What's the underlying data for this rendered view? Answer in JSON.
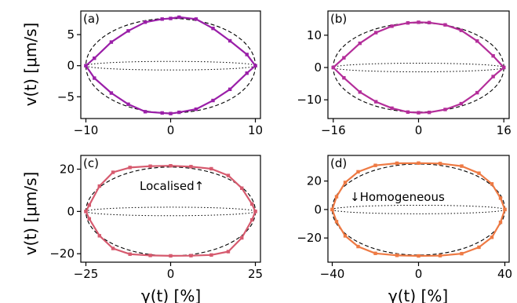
{
  "figure": {
    "ylabel": "v(t) [μm/s]",
    "xlabel": "γ(t) [%]"
  },
  "chart_data": [
    {
      "panel": "(a)",
      "type": "line",
      "title": "",
      "xlabel": "",
      "ylabel": "v(t) [μm/s]",
      "xlim": [
        -10.6,
        10.6
      ],
      "ylim": [
        -8.5,
        8.8
      ],
      "xticks": [
        -10,
        0,
        10
      ],
      "yticks": [
        -5,
        0,
        5
      ],
      "amplitude_strain": 10,
      "max_velocity": 7.6,
      "color": "#9a1fa8",
      "series": [
        {
          "x": [
            -10,
            -9,
            -7,
            -5,
            -3,
            -1,
            0,
            1,
            3,
            5,
            7,
            9,
            10
          ],
          "y": [
            0,
            1.2,
            3.8,
            5.6,
            7.0,
            7.5,
            7.6,
            7.8,
            7.5,
            6.0,
            4.0,
            1.8,
            0
          ]
        },
        {
          "x": [
            10,
            9,
            7,
            5,
            3,
            1,
            0,
            -1,
            -3,
            -5,
            -7,
            -9,
            -10
          ],
          "y": [
            0,
            -1.2,
            -3.8,
            -5.6,
            -7.0,
            -7.5,
            -7.7,
            -7.6,
            -7.4,
            -6.2,
            -4.4,
            -2.0,
            0
          ]
        }
      ],
      "annotations": []
    },
    {
      "panel": "(b)",
      "type": "line",
      "title": "",
      "xlabel": "",
      "ylabel": "",
      "xlim": [
        -17,
        17
      ],
      "ylim": [
        -15.8,
        17.5
      ],
      "xticks": [
        -16,
        0,
        16
      ],
      "yticks": [
        -10,
        0,
        10
      ],
      "amplitude_strain": 16,
      "max_velocity": 13.8,
      "color": "#b42e9a",
      "series": [
        {
          "x": [
            -16,
            -14,
            -11,
            -8,
            -5,
            -2,
            0,
            2,
            5,
            8,
            11,
            14,
            16
          ],
          "y": [
            0,
            3.0,
            7.5,
            10.8,
            12.8,
            13.8,
            14.0,
            13.9,
            13.2,
            11.5,
            8.2,
            3.6,
            0
          ]
        },
        {
          "x": [
            16,
            14,
            11,
            8,
            5,
            2,
            0,
            -2,
            -5,
            -8,
            -11,
            -14,
            -16
          ],
          "y": [
            0,
            -2.8,
            -7.8,
            -11.2,
            -13.0,
            -13.9,
            -14.0,
            -13.8,
            -12.6,
            -10.6,
            -7.6,
            -3.2,
            0
          ]
        }
      ],
      "annotations": []
    },
    {
      "panel": "(c)",
      "type": "line",
      "title": "",
      "xlabel": "γ(t) [%]",
      "ylabel": "v(t) [μm/s]",
      "xlim": [
        -26.5,
        26.5
      ],
      "ylim": [
        -24,
        26.5
      ],
      "xticks": [
        -25,
        0,
        25
      ],
      "yticks": [
        -20,
        0,
        20
      ],
      "amplitude_strain": 25,
      "max_velocity": 21.0,
      "color": "#d65a6e",
      "series": [
        {
          "x": [
            -25,
            -24,
            -21,
            -17,
            -12,
            -6,
            0,
            6,
            12,
            17,
            21,
            24,
            25
          ],
          "y": [
            0,
            3.0,
            12.0,
            18.5,
            20.8,
            21.4,
            21.6,
            21.2,
            20.2,
            17.0,
            11.0,
            3.5,
            0
          ]
        },
        {
          "x": [
            25,
            24,
            21,
            17,
            12,
            6,
            0,
            -6,
            -12,
            -17,
            -21,
            -24,
            -25
          ],
          "y": [
            0,
            -4.0,
            -12.5,
            -19.0,
            -20.6,
            -20.9,
            -21.0,
            -20.8,
            -20.2,
            -17.5,
            -11.5,
            -3.5,
            0
          ]
        }
      ],
      "annotations": [
        {
          "text": "Localised↑"
        }
      ]
    },
    {
      "panel": "(d)",
      "type": "line",
      "title": "",
      "xlabel": "γ(t) [%]",
      "ylabel": "",
      "xlim": [
        -42,
        42
      ],
      "ylim": [
        -37,
        38
      ],
      "xticks": [
        -40,
        0,
        40
      ],
      "yticks": [
        -20,
        0,
        20
      ],
      "amplitude_strain": 40,
      "max_velocity": 32.0,
      "color": "#ee7a44",
      "series": [
        {
          "x": [
            -40,
            -38,
            -34,
            -28,
            -20,
            -10,
            0,
            10,
            20,
            28,
            34,
            38,
            40
          ],
          "y": [
            0,
            9.0,
            19.0,
            26.5,
            31.0,
            32.5,
            32.6,
            32.3,
            30.5,
            25.5,
            18.0,
            8.0,
            0
          ]
        },
        {
          "x": [
            40,
            38,
            34,
            28,
            20,
            10,
            0,
            -10,
            -20,
            -28,
            -34,
            -38,
            -40
          ],
          "y": [
            0,
            -9.0,
            -19.5,
            -26.5,
            -31.0,
            -32.4,
            -32.6,
            -32.2,
            -30.8,
            -26.0,
            -18.5,
            -8.5,
            0
          ]
        }
      ],
      "annotations": [
        {
          "text": "↓Homogeneous"
        }
      ]
    }
  ]
}
